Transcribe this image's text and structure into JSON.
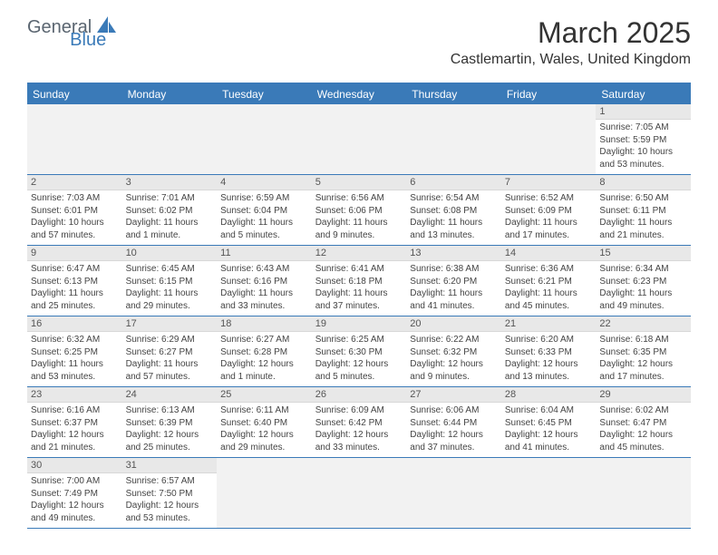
{
  "logo": {
    "part1": "General",
    "part2": "Blue"
  },
  "title": "March 2025",
  "location": "Castlemartin, Wales, United Kingdom",
  "colors": {
    "accent": "#3a7ab8",
    "header_bg": "#3a7ab8",
    "header_text": "#ffffff",
    "daynum_bg": "#e8e8e8",
    "empty_bg": "#f2f2f2",
    "text": "#333333",
    "logo_gray": "#5a6570"
  },
  "day_names": [
    "Sunday",
    "Monday",
    "Tuesday",
    "Wednesday",
    "Thursday",
    "Friday",
    "Saturday"
  ],
  "weeks": [
    [
      null,
      null,
      null,
      null,
      null,
      null,
      {
        "n": "1",
        "sr": "Sunrise: 7:05 AM",
        "ss": "Sunset: 5:59 PM",
        "dl": "Daylight: 10 hours and 53 minutes."
      }
    ],
    [
      {
        "n": "2",
        "sr": "Sunrise: 7:03 AM",
        "ss": "Sunset: 6:01 PM",
        "dl": "Daylight: 10 hours and 57 minutes."
      },
      {
        "n": "3",
        "sr": "Sunrise: 7:01 AM",
        "ss": "Sunset: 6:02 PM",
        "dl": "Daylight: 11 hours and 1 minute."
      },
      {
        "n": "4",
        "sr": "Sunrise: 6:59 AM",
        "ss": "Sunset: 6:04 PM",
        "dl": "Daylight: 11 hours and 5 minutes."
      },
      {
        "n": "5",
        "sr": "Sunrise: 6:56 AM",
        "ss": "Sunset: 6:06 PM",
        "dl": "Daylight: 11 hours and 9 minutes."
      },
      {
        "n": "6",
        "sr": "Sunrise: 6:54 AM",
        "ss": "Sunset: 6:08 PM",
        "dl": "Daylight: 11 hours and 13 minutes."
      },
      {
        "n": "7",
        "sr": "Sunrise: 6:52 AM",
        "ss": "Sunset: 6:09 PM",
        "dl": "Daylight: 11 hours and 17 minutes."
      },
      {
        "n": "8",
        "sr": "Sunrise: 6:50 AM",
        "ss": "Sunset: 6:11 PM",
        "dl": "Daylight: 11 hours and 21 minutes."
      }
    ],
    [
      {
        "n": "9",
        "sr": "Sunrise: 6:47 AM",
        "ss": "Sunset: 6:13 PM",
        "dl": "Daylight: 11 hours and 25 minutes."
      },
      {
        "n": "10",
        "sr": "Sunrise: 6:45 AM",
        "ss": "Sunset: 6:15 PM",
        "dl": "Daylight: 11 hours and 29 minutes."
      },
      {
        "n": "11",
        "sr": "Sunrise: 6:43 AM",
        "ss": "Sunset: 6:16 PM",
        "dl": "Daylight: 11 hours and 33 minutes."
      },
      {
        "n": "12",
        "sr": "Sunrise: 6:41 AM",
        "ss": "Sunset: 6:18 PM",
        "dl": "Daylight: 11 hours and 37 minutes."
      },
      {
        "n": "13",
        "sr": "Sunrise: 6:38 AM",
        "ss": "Sunset: 6:20 PM",
        "dl": "Daylight: 11 hours and 41 minutes."
      },
      {
        "n": "14",
        "sr": "Sunrise: 6:36 AM",
        "ss": "Sunset: 6:21 PM",
        "dl": "Daylight: 11 hours and 45 minutes."
      },
      {
        "n": "15",
        "sr": "Sunrise: 6:34 AM",
        "ss": "Sunset: 6:23 PM",
        "dl": "Daylight: 11 hours and 49 minutes."
      }
    ],
    [
      {
        "n": "16",
        "sr": "Sunrise: 6:32 AM",
        "ss": "Sunset: 6:25 PM",
        "dl": "Daylight: 11 hours and 53 minutes."
      },
      {
        "n": "17",
        "sr": "Sunrise: 6:29 AM",
        "ss": "Sunset: 6:27 PM",
        "dl": "Daylight: 11 hours and 57 minutes."
      },
      {
        "n": "18",
        "sr": "Sunrise: 6:27 AM",
        "ss": "Sunset: 6:28 PM",
        "dl": "Daylight: 12 hours and 1 minute."
      },
      {
        "n": "19",
        "sr": "Sunrise: 6:25 AM",
        "ss": "Sunset: 6:30 PM",
        "dl": "Daylight: 12 hours and 5 minutes."
      },
      {
        "n": "20",
        "sr": "Sunrise: 6:22 AM",
        "ss": "Sunset: 6:32 PM",
        "dl": "Daylight: 12 hours and 9 minutes."
      },
      {
        "n": "21",
        "sr": "Sunrise: 6:20 AM",
        "ss": "Sunset: 6:33 PM",
        "dl": "Daylight: 12 hours and 13 minutes."
      },
      {
        "n": "22",
        "sr": "Sunrise: 6:18 AM",
        "ss": "Sunset: 6:35 PM",
        "dl": "Daylight: 12 hours and 17 minutes."
      }
    ],
    [
      {
        "n": "23",
        "sr": "Sunrise: 6:16 AM",
        "ss": "Sunset: 6:37 PM",
        "dl": "Daylight: 12 hours and 21 minutes."
      },
      {
        "n": "24",
        "sr": "Sunrise: 6:13 AM",
        "ss": "Sunset: 6:39 PM",
        "dl": "Daylight: 12 hours and 25 minutes."
      },
      {
        "n": "25",
        "sr": "Sunrise: 6:11 AM",
        "ss": "Sunset: 6:40 PM",
        "dl": "Daylight: 12 hours and 29 minutes."
      },
      {
        "n": "26",
        "sr": "Sunrise: 6:09 AM",
        "ss": "Sunset: 6:42 PM",
        "dl": "Daylight: 12 hours and 33 minutes."
      },
      {
        "n": "27",
        "sr": "Sunrise: 6:06 AM",
        "ss": "Sunset: 6:44 PM",
        "dl": "Daylight: 12 hours and 37 minutes."
      },
      {
        "n": "28",
        "sr": "Sunrise: 6:04 AM",
        "ss": "Sunset: 6:45 PM",
        "dl": "Daylight: 12 hours and 41 minutes."
      },
      {
        "n": "29",
        "sr": "Sunrise: 6:02 AM",
        "ss": "Sunset: 6:47 PM",
        "dl": "Daylight: 12 hours and 45 minutes."
      }
    ],
    [
      {
        "n": "30",
        "sr": "Sunrise: 7:00 AM",
        "ss": "Sunset: 7:49 PM",
        "dl": "Daylight: 12 hours and 49 minutes."
      },
      {
        "n": "31",
        "sr": "Sunrise: 6:57 AM",
        "ss": "Sunset: 7:50 PM",
        "dl": "Daylight: 12 hours and 53 minutes."
      },
      null,
      null,
      null,
      null,
      null
    ]
  ]
}
